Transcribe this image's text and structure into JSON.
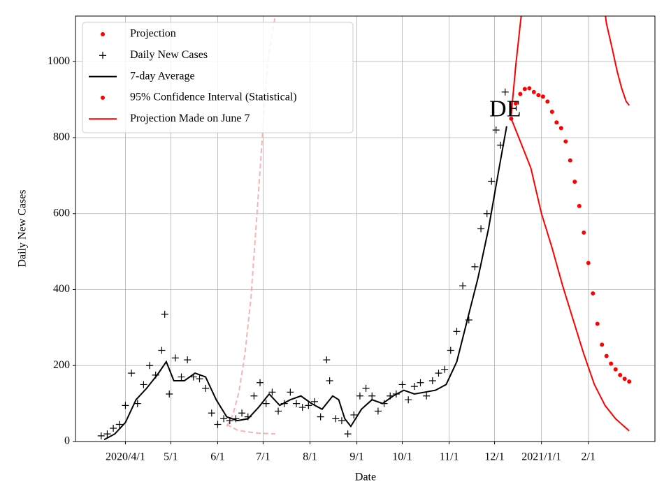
{
  "chart_data": {
    "type": "line",
    "xlabel": "Date",
    "ylabel": "Daily New Cases",
    "xlim": [
      "2020-02-28",
      "2021-03-17"
    ],
    "ylim": [
      0,
      1120
    ],
    "yticks": [
      0,
      200,
      400,
      600,
      800,
      1000
    ],
    "xticks": [
      {
        "value": "2020-04-01",
        "label": "2020/4/1"
      },
      {
        "value": "2020-05-01",
        "label": "5/1"
      },
      {
        "value": "2020-06-01",
        "label": "6/1"
      },
      {
        "value": "2020-07-01",
        "label": "7/1"
      },
      {
        "value": "2020-08-01",
        "label": "8/1"
      },
      {
        "value": "2020-09-01",
        "label": "9/1"
      },
      {
        "value": "2020-10-01",
        "label": "10/1"
      },
      {
        "value": "2020-11-01",
        "label": "11/1"
      },
      {
        "value": "2020-12-01",
        "label": "12/1"
      },
      {
        "value": "2021-01-01",
        "label": "2021/1/1"
      },
      {
        "value": "2021-02-01",
        "label": "2/1"
      }
    ],
    "grid": true,
    "legend": "upper left",
    "annotations": [
      {
        "text": "DE",
        "x": "2020-12-08",
        "y": 870
      }
    ],
    "series": [
      {
        "name": "Projection",
        "marker": "o",
        "color": "#ff0000",
        "x": [
          "2020-12-12",
          "2020-12-15",
          "2020-12-18",
          "2020-12-21",
          "2020-12-24",
          "2020-12-27",
          "2020-12-30",
          "2021-01-02",
          "2021-01-05",
          "2021-01-08",
          "2021-01-11",
          "2021-01-14",
          "2021-01-17",
          "2021-01-20",
          "2021-01-23",
          "2021-01-26",
          "2021-01-29",
          "2021-02-01",
          "2021-02-04",
          "2021-02-07",
          "2021-02-10",
          "2021-02-13",
          "2021-02-16",
          "2021-02-19",
          "2021-02-22",
          "2021-02-25",
          "2021-02-28"
        ],
        "values": [
          850,
          890,
          915,
          928,
          930,
          920,
          912,
          908,
          895,
          868,
          840,
          825,
          790,
          740,
          684,
          620,
          550,
          470,
          390,
          310,
          255,
          225,
          205,
          190,
          175,
          165,
          158
        ]
      },
      {
        "name": "Daily New Cases",
        "marker": "+",
        "color": "#000000",
        "x": [
          "2020-03-16",
          "2020-03-20",
          "2020-03-24",
          "2020-03-28",
          "2020-04-01",
          "2020-04-05",
          "2020-04-09",
          "2020-04-13",
          "2020-04-17",
          "2020-04-21",
          "2020-04-25",
          "2020-04-27",
          "2020-04-30",
          "2020-05-04",
          "2020-05-08",
          "2020-05-12",
          "2020-05-16",
          "2020-05-20",
          "2020-05-24",
          "2020-05-28",
          "2020-06-01",
          "2020-06-05",
          "2020-06-09",
          "2020-06-13",
          "2020-06-17",
          "2020-06-21",
          "2020-06-25",
          "2020-06-29",
          "2020-07-03",
          "2020-07-07",
          "2020-07-11",
          "2020-07-15",
          "2020-07-19",
          "2020-07-23",
          "2020-07-27",
          "2020-07-31",
          "2020-08-04",
          "2020-08-08",
          "2020-08-12",
          "2020-08-14",
          "2020-08-18",
          "2020-08-22",
          "2020-08-26",
          "2020-08-30",
          "2020-09-03",
          "2020-09-07",
          "2020-09-11",
          "2020-09-15",
          "2020-09-19",
          "2020-09-23",
          "2020-09-27",
          "2020-10-01",
          "2020-10-05",
          "2020-10-09",
          "2020-10-13",
          "2020-10-17",
          "2020-10-21",
          "2020-10-25",
          "2020-10-29",
          "2020-11-02",
          "2020-11-06",
          "2020-11-10",
          "2020-11-14",
          "2020-11-18",
          "2020-11-22",
          "2020-11-26",
          "2020-11-29",
          "2020-12-02",
          "2020-12-05",
          "2020-12-08"
        ],
        "values": [
          15,
          20,
          35,
          45,
          95,
          180,
          100,
          150,
          200,
          175,
          240,
          335,
          125,
          220,
          170,
          215,
          170,
          165,
          140,
          75,
          45,
          60,
          55,
          60,
          75,
          65,
          120,
          155,
          100,
          130,
          80,
          100,
          130,
          100,
          90,
          95,
          105,
          65,
          215,
          160,
          60,
          55,
          20,
          70,
          120,
          140,
          120,
          80,
          100,
          120,
          125,
          150,
          110,
          145,
          155,
          120,
          160,
          180,
          190,
          240,
          290,
          410,
          320,
          460,
          560,
          600,
          685,
          820,
          780,
          920
        ]
      },
      {
        "name": "7-day Average",
        "marker": "-",
        "color": "#000000",
        "x": [
          "2020-03-18",
          "2020-03-25",
          "2020-04-01",
          "2020-04-08",
          "2020-04-15",
          "2020-04-22",
          "2020-04-28",
          "2020-05-03",
          "2020-05-10",
          "2020-05-17",
          "2020-05-24",
          "2020-05-31",
          "2020-06-07",
          "2020-06-14",
          "2020-06-21",
          "2020-06-28",
          "2020-07-05",
          "2020-07-12",
          "2020-07-19",
          "2020-07-26",
          "2020-08-02",
          "2020-08-09",
          "2020-08-16",
          "2020-08-20",
          "2020-08-24",
          "2020-08-28",
          "2020-09-04",
          "2020-09-11",
          "2020-09-18",
          "2020-09-25",
          "2020-10-02",
          "2020-10-09",
          "2020-10-16",
          "2020-10-23",
          "2020-10-30",
          "2020-11-06",
          "2020-11-13",
          "2020-11-20",
          "2020-11-27",
          "2020-12-04",
          "2020-12-09"
        ],
        "values": [
          5,
          20,
          50,
          110,
          140,
          175,
          210,
          160,
          160,
          180,
          170,
          110,
          65,
          55,
          60,
          90,
          125,
          95,
          110,
          120,
          100,
          85,
          120,
          110,
          60,
          40,
          85,
          110,
          100,
          120,
          135,
          125,
          130,
          135,
          150,
          210,
          320,
          430,
          560,
          720,
          830
        ]
      },
      {
        "name": "95% Confidence Interval (Statistical)",
        "marker": "band",
        "legend_marker": "o",
        "color": "#ff0000",
        "x_lower": [
          "2020-12-12",
          "2020-12-18",
          "2020-12-25",
          "2021-01-01",
          "2021-01-08",
          "2021-01-15",
          "2021-01-22",
          "2021-01-29",
          "2021-02-05",
          "2021-02-12",
          "2021-02-19",
          "2021-02-28"
        ],
        "lower": [
          850,
          790,
          720,
          600,
          510,
          410,
          320,
          230,
          150,
          95,
          60,
          28
        ],
        "x_upper": [
          "2020-12-12",
          "2020-12-15",
          "2020-12-18",
          "2020-12-21",
          "2021-01-15",
          "2021-02-11",
          "2021-02-13",
          "2021-02-17",
          "2021-02-20",
          "2021-02-23",
          "2021-02-26",
          "2021-02-28"
        ],
        "upper": [
          860,
          990,
          1100,
          1200,
          null,
          1160,
          1100,
          1030,
          975,
          930,
          895,
          885
        ]
      },
      {
        "name": "Projection Made on June 7",
        "marker": "band",
        "linestyle": "dashed",
        "legend_marker": "-",
        "color": "#f7b4b4",
        "legend_color": "#ff0000",
        "x_lower": [
          "2020-06-07",
          "2020-06-14",
          "2020-06-21",
          "2020-06-28",
          "2020-07-09"
        ],
        "lower": [
          45,
          30,
          25,
          22,
          20
        ],
        "x_upper": [
          "2020-06-07",
          "2020-06-11",
          "2020-06-15",
          "2020-06-19",
          "2020-06-23",
          "2020-06-27",
          "2020-07-01",
          "2020-07-04",
          "2020-07-09"
        ],
        "upper": [
          40,
          70,
          130,
          230,
          380,
          600,
          830,
          1000,
          1120
        ]
      }
    ]
  }
}
